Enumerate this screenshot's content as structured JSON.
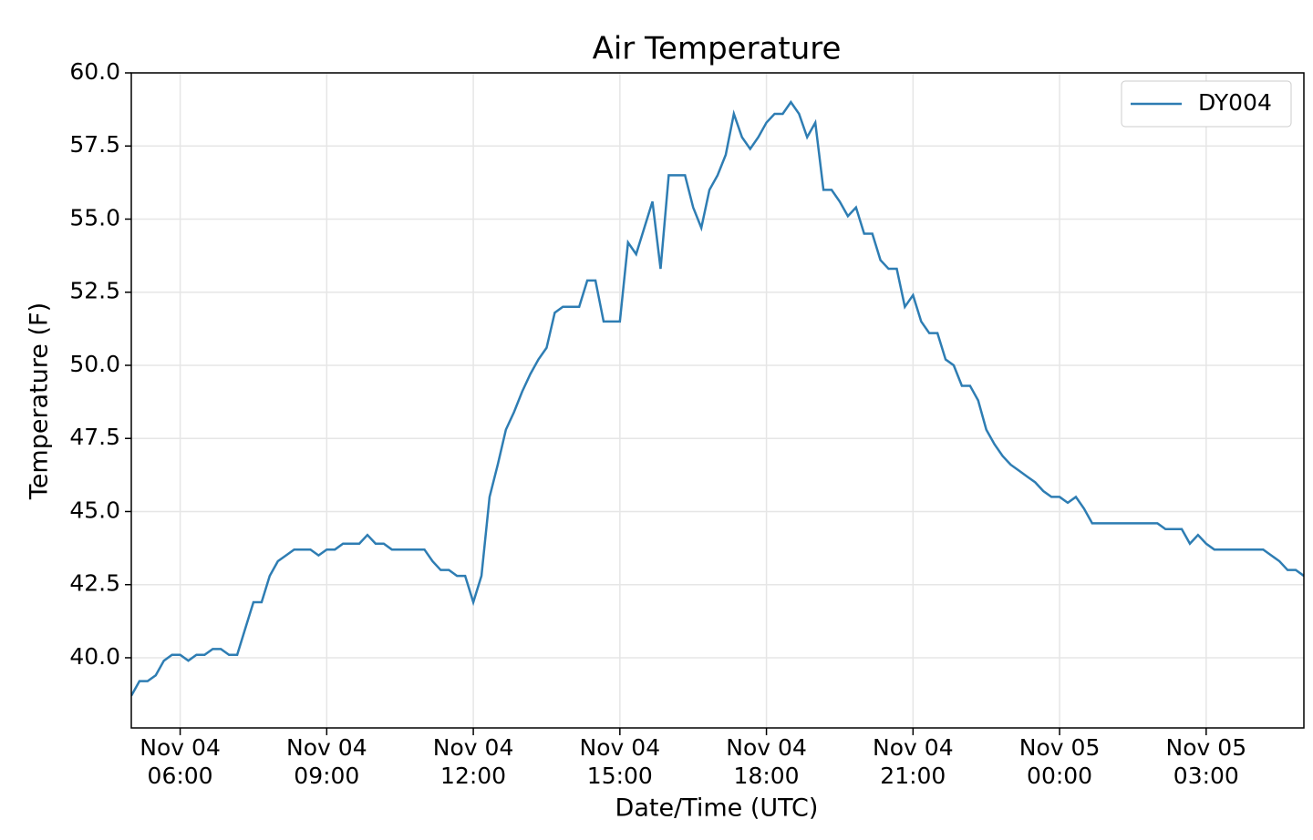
{
  "chart_data": {
    "type": "line",
    "title": "Air Temperature",
    "x_label": "Date/Time (UTC)",
    "y_label": "Temperature (F)",
    "x": [
      5,
      5.167,
      5.333,
      5.5,
      5.667,
      5.833,
      6,
      6.167,
      6.333,
      6.5,
      6.667,
      6.833,
      7,
      7.167,
      7.333,
      7.5,
      7.667,
      7.833,
      8,
      8.167,
      8.333,
      8.5,
      8.667,
      8.833,
      9,
      9.167,
      9.333,
      9.5,
      9.667,
      9.833,
      10,
      10.167,
      10.333,
      10.5,
      10.667,
      10.833,
      11,
      11.167,
      11.333,
      11.5,
      11.667,
      11.833,
      12,
      12.167,
      12.333,
      12.5,
      12.667,
      12.833,
      13,
      13.167,
      13.333,
      13.5,
      13.667,
      13.833,
      14,
      14.167,
      14.333,
      14.5,
      14.667,
      14.833,
      15,
      15.167,
      15.333,
      15.5,
      15.667,
      15.833,
      16,
      16.167,
      16.333,
      16.5,
      16.667,
      16.833,
      17,
      17.167,
      17.333,
      17.5,
      17.667,
      17.833,
      18,
      18.167,
      18.333,
      18.5,
      18.667,
      18.833,
      19,
      19.167,
      19.333,
      19.5,
      19.667,
      19.833,
      20,
      20.167,
      20.333,
      20.5,
      20.667,
      20.833,
      21,
      21.167,
      21.333,
      21.5,
      21.667,
      21.833,
      22,
      22.167,
      22.333,
      22.5,
      22.667,
      22.833,
      23,
      23.167,
      23.333,
      23.5,
      23.667,
      23.833,
      24,
      24.167,
      24.333,
      24.5,
      24.667,
      24.833,
      25,
      25.167,
      25.333,
      25.5,
      25.667,
      25.833,
      26,
      26.167,
      26.333,
      26.5,
      26.667,
      26.833,
      27,
      27.167,
      27.333,
      27.5,
      27.667,
      27.833,
      28,
      28.167,
      28.333,
      28.5,
      28.667,
      28.833,
      29
    ],
    "series": [
      {
        "name": "DY004",
        "color": "#2e7db3",
        "values": [
          38.7,
          39.2,
          39.2,
          39.4,
          39.9,
          40.1,
          40.1,
          39.9,
          40.1,
          40.1,
          40.3,
          40.3,
          40.1,
          40.1,
          41.0,
          41.9,
          41.9,
          42.8,
          43.3,
          43.5,
          43.7,
          43.7,
          43.7,
          43.5,
          43.7,
          43.7,
          43.9,
          43.9,
          43.9,
          44.2,
          43.9,
          43.9,
          43.7,
          43.7,
          43.7,
          43.7,
          43.7,
          43.3,
          43.0,
          43.0,
          42.8,
          42.8,
          41.9,
          42.8,
          45.5,
          46.6,
          47.8,
          48.4,
          49.1,
          49.7,
          50.2,
          50.6,
          51.8,
          52.0,
          52.0,
          52.0,
          52.9,
          52.9,
          51.5,
          51.5,
          51.5,
          54.2,
          53.8,
          54.7,
          55.6,
          53.3,
          56.5,
          56.5,
          56.5,
          55.4,
          54.7,
          56.0,
          56.5,
          57.2,
          58.6,
          57.8,
          57.4,
          57.8,
          58.3,
          58.6,
          58.6,
          59.0,
          58.6,
          57.8,
          58.3,
          56.0,
          56.0,
          55.6,
          55.1,
          55.4,
          54.5,
          54.5,
          53.6,
          53.3,
          53.3,
          52.0,
          52.4,
          51.5,
          51.1,
          51.1,
          50.2,
          50.0,
          49.3,
          49.3,
          48.8,
          47.8,
          47.3,
          46.9,
          46.6,
          46.4,
          46.2,
          46.0,
          45.7,
          45.5,
          45.5,
          45.3,
          45.5,
          45.1,
          44.6,
          44.6,
          44.6,
          44.6,
          44.6,
          44.6,
          44.6,
          44.6,
          44.6,
          44.4,
          44.4,
          44.4,
          43.9,
          44.2,
          43.9,
          43.7,
          43.7,
          43.7,
          43.7,
          43.7,
          43.7,
          43.7,
          43.5,
          43.3,
          43.0,
          43.0,
          42.8
        ]
      }
    ],
    "xlim": [
      5,
      29
    ],
    "xticks": [
      {
        "value": 6,
        "label": "Nov 04\n06:00"
      },
      {
        "value": 9,
        "label": "Nov 04\n09:00"
      },
      {
        "value": 12,
        "label": "Nov 04\n12:00"
      },
      {
        "value": 15,
        "label": "Nov 04\n15:00"
      },
      {
        "value": 18,
        "label": "Nov 04\n18:00"
      },
      {
        "value": 21,
        "label": "Nov 04\n21:00"
      },
      {
        "value": 24,
        "label": "Nov 05\n00:00"
      },
      {
        "value": 27,
        "label": "Nov 05\n03:00"
      }
    ],
    "ylim": [
      37.6,
      60
    ],
    "yticks": [
      {
        "value": 40,
        "label": "40.0"
      },
      {
        "value": 42.5,
        "label": "42.5"
      },
      {
        "value": 45,
        "label": "45.0"
      },
      {
        "value": 47.5,
        "label": "47.5"
      },
      {
        "value": 50,
        "label": "50.0"
      },
      {
        "value": 52.5,
        "label": "52.5"
      },
      {
        "value": 55,
        "label": "55.0"
      },
      {
        "value": 57.5,
        "label": "57.5"
      },
      {
        "value": 60,
        "label": "60.0"
      }
    ],
    "grid": true,
    "legend": "upper right"
  }
}
